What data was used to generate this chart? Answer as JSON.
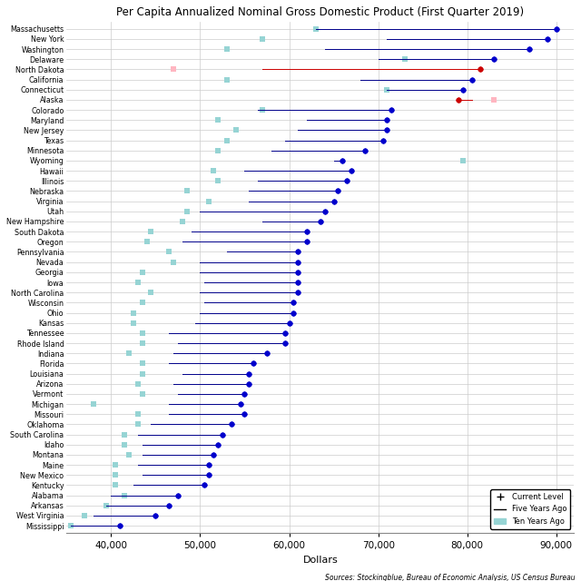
{
  "title": "Per Capita Annualized Nominal Gross Domestic Product (First Quarter 2019)",
  "xlabel": "Dollars",
  "source": "Sources: Stockingblue, Bureau of Economic Analysis, US Census Bureau",
  "states": [
    "Massachusetts",
    "New York",
    "Washington",
    "Delaware",
    "North Dakota",
    "California",
    "Connecticut",
    "Alaska",
    "Colorado",
    "Maryland",
    "New Jersey",
    "Texas",
    "Minnesota",
    "Wyoming",
    "Hawaii",
    "Illinois",
    "Nebraska",
    "Virginia",
    "Utah",
    "New Hampshire",
    "South Dakota",
    "Oregon",
    "Pennsylvania",
    "Nevada",
    "Georgia",
    "Iowa",
    "North Carolina",
    "Wisconsin",
    "Ohio",
    "Kansas",
    "Tennessee",
    "Rhode Island",
    "Indiana",
    "Florida",
    "Louisiana",
    "Arizona",
    "Vermont",
    "Michigan",
    "Missouri",
    "Oklahoma",
    "South Carolina",
    "Idaho",
    "Montana",
    "Maine",
    "New Mexico",
    "Kentucky",
    "Alabama",
    "Arkansas",
    "West Virginia",
    "Mississippi"
  ],
  "current": [
    90000,
    89000,
    87000,
    83000,
    81500,
    80500,
    79500,
    79000,
    71500,
    71000,
    71000,
    70500,
    68500,
    66000,
    67000,
    66500,
    65500,
    65000,
    64000,
    63500,
    62000,
    62000,
    61000,
    61000,
    61000,
    61000,
    61000,
    60500,
    60500,
    60000,
    59500,
    59500,
    57500,
    56000,
    55500,
    55500,
    55000,
    54500,
    55000,
    53500,
    52500,
    52000,
    51500,
    51000,
    51000,
    50500,
    47500,
    46500,
    45000,
    41000
  ],
  "five_years": [
    63000,
    71000,
    64000,
    70000,
    57000,
    68000,
    71000,
    80500,
    56500,
    62000,
    61000,
    59500,
    58000,
    65000,
    55000,
    56500,
    55500,
    55500,
    50000,
    57000,
    49000,
    48000,
    53000,
    50000,
    50000,
    50500,
    50000,
    50500,
    50000,
    49500,
    46500,
    47500,
    47000,
    46500,
    48000,
    47000,
    47500,
    46500,
    46500,
    44500,
    43000,
    43500,
    43500,
    43000,
    43500,
    42500,
    40000,
    39500,
    38000,
    35500
  ],
  "ten_years": [
    63000,
    57000,
    53000,
    73000,
    47000,
    53000,
    71000,
    83000,
    57000,
    52000,
    54000,
    53000,
    52000,
    79500,
    51500,
    52000,
    48500,
    51000,
    48500,
    48000,
    44500,
    44000,
    46500,
    47000,
    43500,
    43000,
    44500,
    43500,
    42500,
    42500,
    43500,
    43500,
    42000,
    43500,
    43500,
    43000,
    43500,
    38000,
    43000,
    43000,
    41500,
    41500,
    42000,
    40500,
    40500,
    40500,
    41500,
    39500,
    37000,
    35500
  ],
  "xlim": [
    35000,
    92000
  ],
  "xticks": [
    40000,
    50000,
    60000,
    70000,
    80000,
    90000
  ],
  "special_states": [
    "North Dakota",
    "Alaska"
  ],
  "current_color_default": "#0000CC",
  "current_color_special": "#CC0000",
  "ten_year_color_default": "#96D4D4",
  "ten_year_color_special": "#FFB6C1",
  "line_color_default": "#00008B",
  "line_color_special": "#CC0000",
  "bg_color": "#F5F5F5"
}
